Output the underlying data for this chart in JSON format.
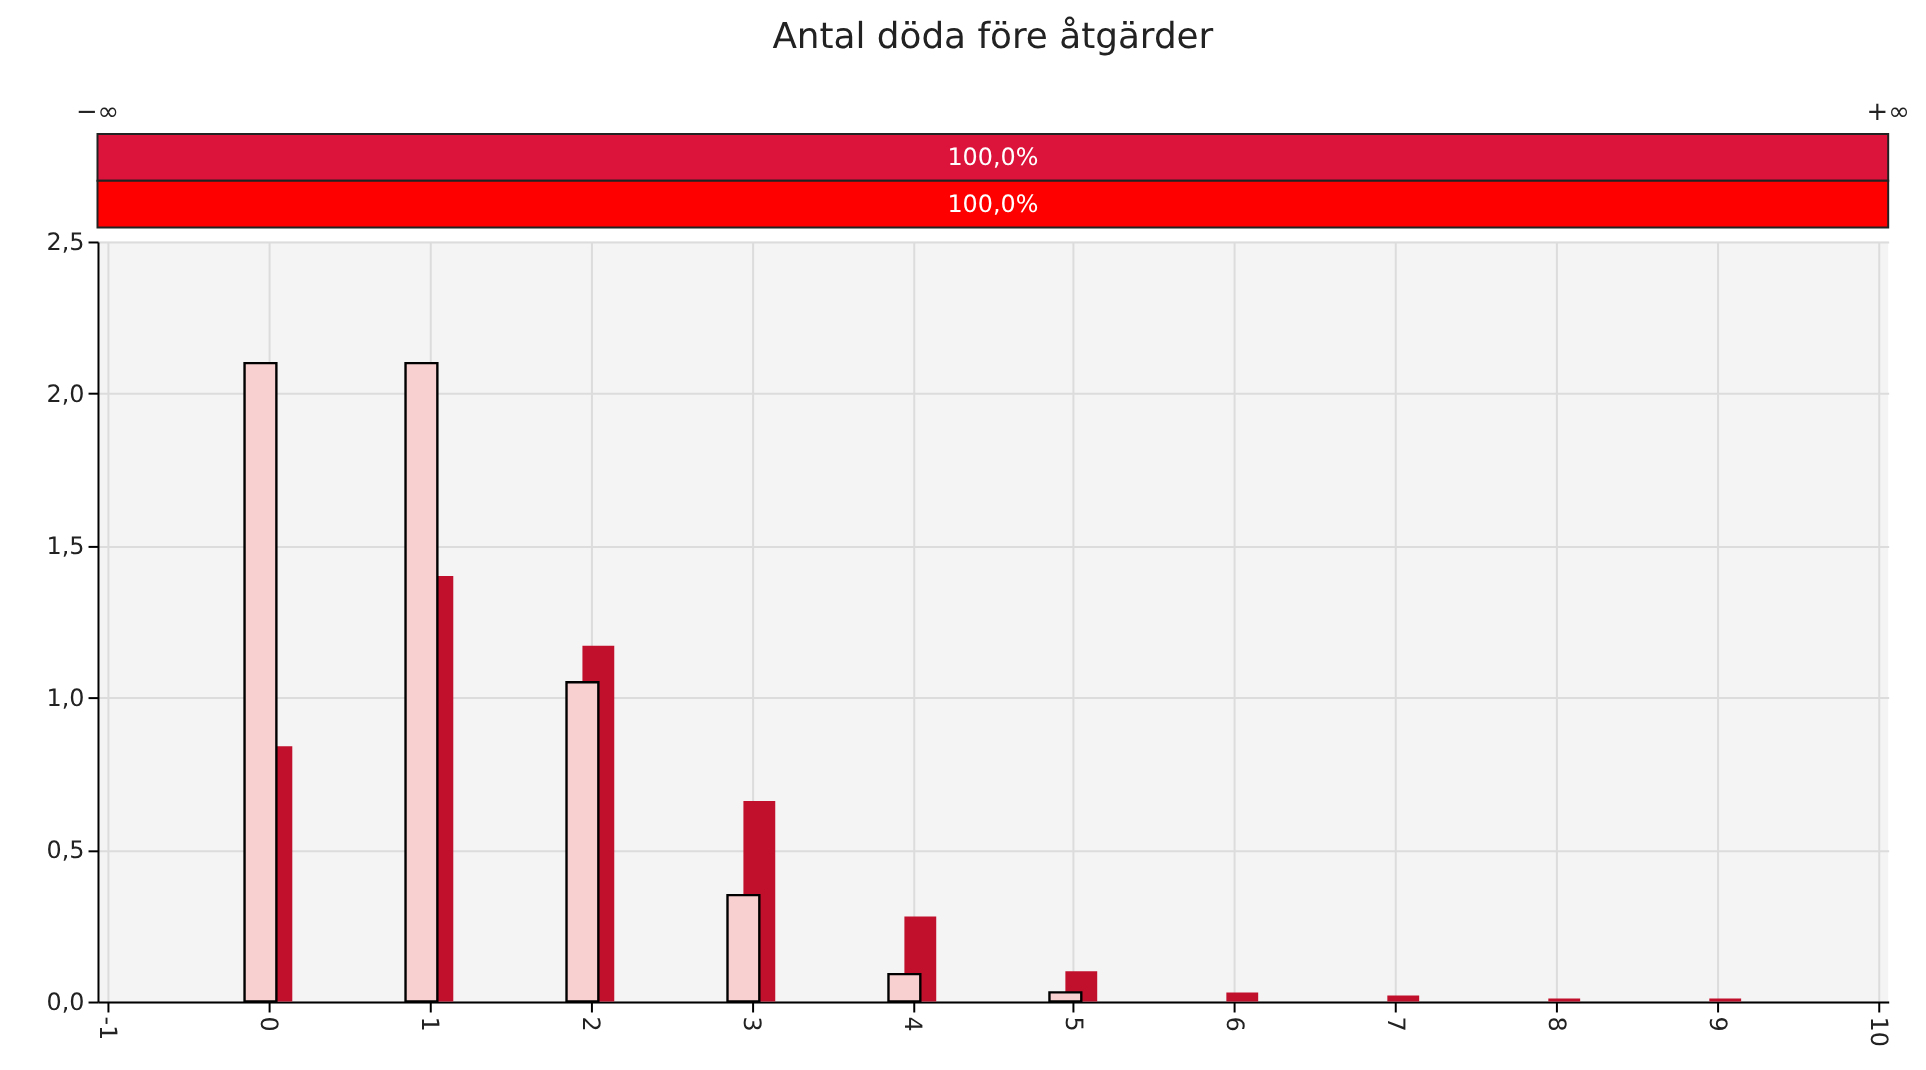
{
  "chart_data": [
    {
      "type": "bar",
      "title": "Antal döda före åtgärder",
      "orientation": "horizontal",
      "categories": [
        null,
        null
      ],
      "values": [
        100,
        100
      ],
      "colors": [
        "#dc143c",
        "#ff0000"
      ],
      "value_labels": [
        "100,0%",
        "100,0%"
      ],
      "annotations": [
        "−∞",
        "+∞"
      ]
    },
    {
      "type": "bar",
      "x": [
        0,
        1,
        2,
        3,
        4,
        5,
        6,
        7,
        8,
        9
      ],
      "series": [
        {
          "color": "#c0102c",
          "values": [
            0.84,
            1.4,
            1.17,
            0.66,
            0.28,
            0.1,
            0.03,
            0.02,
            0.01,
            0.01
          ]
        },
        {
          "color": "#f8d0d0",
          "values": [
            2.1,
            2.1,
            1.05,
            0.35,
            0.09,
            0.03,
            null,
            null,
            null,
            null
          ]
        }
      ],
      "xlim": [
        -1,
        10
      ],
      "xticks": [
        -1,
        0,
        1,
        2,
        3,
        4,
        5,
        6,
        7,
        8,
        9,
        10
      ],
      "ylim": [
        0,
        2.5
      ],
      "yticks": [
        {
          "value": 0,
          "label": "0,0"
        },
        {
          "value": 0.5,
          "label": "0,5"
        },
        {
          "value": 1,
          "label": "1,0"
        },
        {
          "value": 1.5,
          "label": "1,5"
        },
        {
          "value": 2,
          "label": "2,0"
        },
        {
          "value": 2.5,
          "label": "2,5"
        }
      ],
      "grid": true
    }
  ]
}
